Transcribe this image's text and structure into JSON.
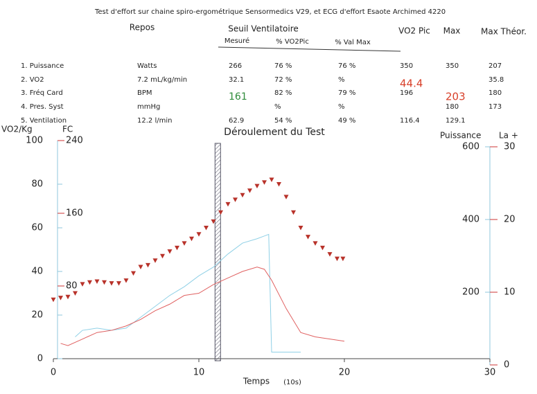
{
  "header": {
    "title": "Test d'effort sur chaine spiro-ergométrique Sensormedics V29, et ECG d'effort Esaote Archimed 4220",
    "columns": [
      "Repos",
      "Seuil Ventilatoire",
      "VO2 Pic",
      "Max",
      "Max Théor."
    ],
    "subcolumns": [
      "Mesuré",
      "% VO2Pic",
      "% Val Max"
    ]
  },
  "table": {
    "rows": [
      [
        "1. Puissance",
        "Watts",
        "266",
        "76  %",
        "76  %",
        "350",
        "350",
        "207"
      ],
      [
        "2. VO2",
        "7.2 mL/kg/min",
        "32.1",
        "72  %",
        "%",
        "44.4",
        null,
        "35.8"
      ],
      [
        "3. Fréq Card",
        "BPM",
        "161",
        "82  %",
        "79  %",
        "196",
        "203",
        "180"
      ],
      [
        "4. Pres. Syst",
        "mmHg",
        null,
        "%",
        "%",
        null,
        "180",
        "173"
      ],
      [
        "5. Ventilation",
        "12.2 l/min",
        "62.9",
        "54  %",
        "49  %",
        "116.4",
        "129.1",
        null
      ]
    ]
  },
  "chart_data": {
    "type": "line",
    "title": "Déroulement du Test",
    "x_label": "Temps",
    "x_unit": "(10s)",
    "y_label": "VO2/Kg",
    "fc_label": "FC",
    "y2_label": "Puissance",
    "y3_label": "La +",
    "xlim": [
      0,
      30
    ],
    "xticks": [
      0,
      10,
      20,
      30
    ],
    "ylim": [
      0,
      100
    ],
    "yticks": [
      0,
      20,
      40,
      60,
      80,
      100
    ],
    "fc_lim": [
      0,
      240
    ],
    "fc_ticks": [
      80,
      160,
      240
    ],
    "y2lim": [
      0,
      600
    ],
    "y2ticks": [
      200,
      400,
      600
    ],
    "y3lim": [
      0,
      30
    ],
    "y3ticks": [
      0,
      10,
      20,
      30
    ],
    "threshold_x": 11.3,
    "series": [
      {
        "color": "#b8322a",
        "marker": "triangle",
        "axis": "fc",
        "x": [
          0,
          0.5,
          1,
          1.5,
          2,
          2.5,
          3,
          3.5,
          4,
          4.5,
          5,
          5.5,
          6,
          6.5,
          7,
          7.5,
          8,
          8.5,
          9,
          9.5,
          10,
          10.5,
          11,
          11.5,
          12,
          12.5,
          13,
          13.5,
          14,
          14.5,
          15,
          15.5,
          16,
          16.5,
          17,
          17.5,
          18,
          18.5,
          19,
          19.5,
          19.9
        ],
        "values": [
          65,
          67,
          68,
          72,
          82,
          84,
          85,
          84,
          83,
          83,
          86,
          94,
          101,
          103,
          108,
          113,
          118,
          122,
          127,
          132,
          137,
          144,
          151,
          161,
          170,
          175,
          180,
          185,
          190,
          194,
          197,
          192,
          178,
          161,
          144,
          134,
          127,
          122,
          115,
          110,
          110
        ]
      },
      {
        "color": "#8fd0e6",
        "axis": "y",
        "x": [
          1.5,
          2,
          3,
          4,
          5,
          6,
          7,
          8,
          9,
          10,
          11,
          12,
          13,
          14,
          14.8,
          15,
          17
        ],
        "values": [
          10,
          13,
          14,
          13,
          14,
          19,
          24,
          29,
          33,
          38,
          42,
          48,
          53,
          55,
          57,
          3,
          3
        ]
      },
      {
        "color": "#e06060",
        "axis": "y",
        "x": [
          0.5,
          1,
          2,
          3,
          4,
          5,
          6,
          7,
          8,
          9,
          10,
          11,
          12,
          13,
          14,
          14.5,
          15,
          16,
          17,
          18,
          19,
          20
        ],
        "values": [
          7,
          6,
          9,
          12,
          13,
          15,
          18,
          22,
          25,
          29,
          30,
          34,
          37,
          40,
          42,
          41,
          36,
          23,
          12,
          10,
          9,
          8
        ]
      }
    ]
  }
}
